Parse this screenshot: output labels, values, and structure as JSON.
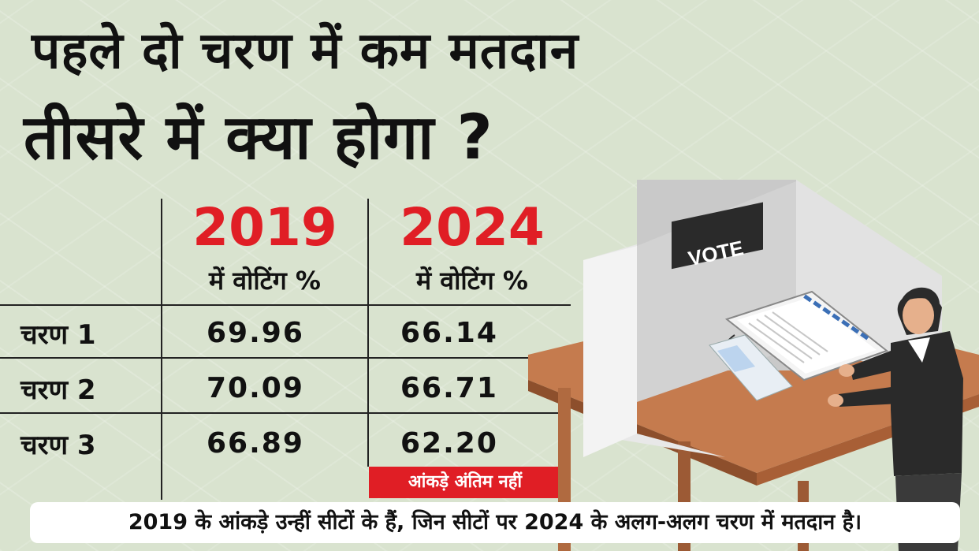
{
  "headline": {
    "line1": "पहले दो चरण में कम मतदान",
    "line2": "तीसरे में क्या होगा ?"
  },
  "table": {
    "columns": [
      {
        "year": "2019",
        "label": "में वोटिंग %"
      },
      {
        "year": "2024",
        "label": "में वोटिंग %"
      }
    ],
    "rows": [
      {
        "phase": "चरण 1",
        "v2019": "69.96",
        "v2024": "66.14"
      },
      {
        "phase": "चरण 2",
        "v2019": "70.09",
        "v2024": "66.71"
      },
      {
        "phase": "चरण 3",
        "v2019": "66.89",
        "v2024": "62.20"
      }
    ],
    "note": "आंकड़े अंतिम नहीं"
  },
  "illustration": {
    "sign": "VOTE"
  },
  "footer": "2019 के आंकड़े उन्हीं सीटों के हैं, जिन सीटों पर 2024 के अलग-अलग चरण में मतदान है।",
  "colors": {
    "accent": "#e01e25",
    "background": "#d9e3cf"
  }
}
